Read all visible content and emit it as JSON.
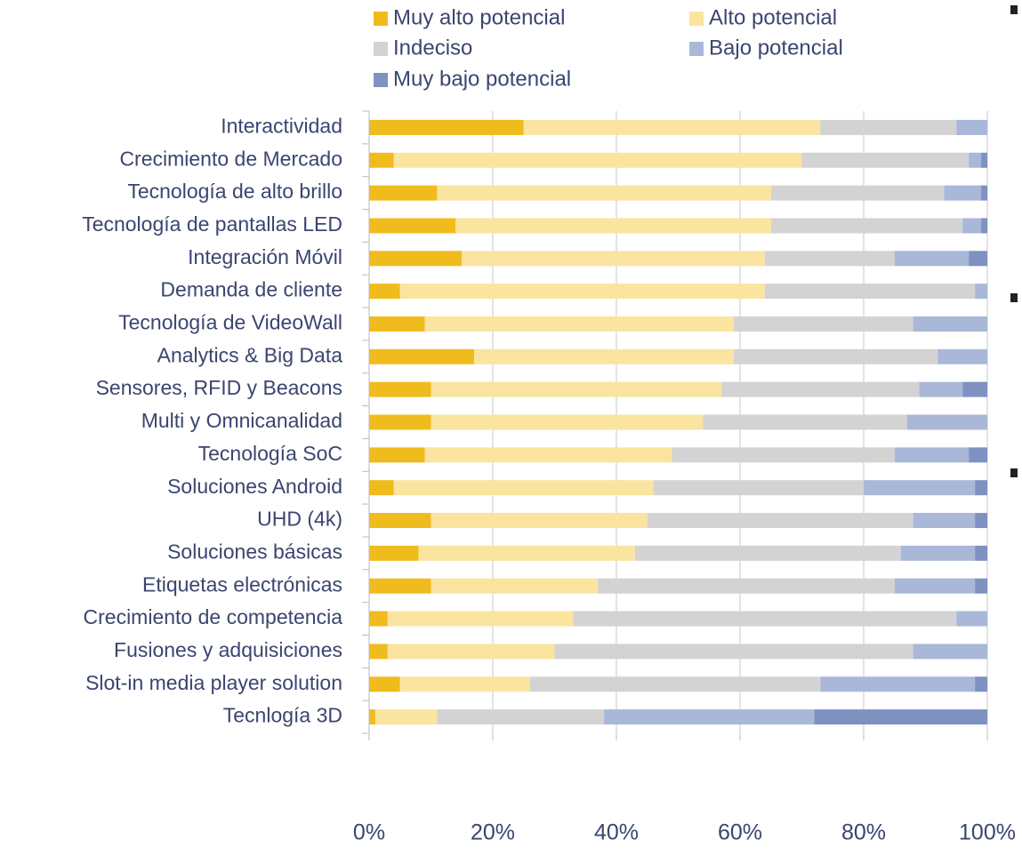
{
  "chart_data": {
    "type": "stacked-barh",
    "categories": [
      "Interactividad",
      "Crecimiento de Mercado",
      "Tecnología de alto brillo",
      "Tecnología de pantallas LED",
      "Integración Móvil",
      "Demanda de cliente",
      "Tecnología de VideoWall",
      "Analytics & Big Data",
      "Sensores, RFID y Beacons",
      "Multi y Omnicanalidad",
      "Tecnología SoC",
      "Soluciones Android",
      "UHD (4k)",
      "Soluciones básicas",
      "Etiquetas electrónicas",
      "Crecimiento de competencia",
      "Fusiones y adquisiciones",
      "Slot-in media player solution",
      "Tecnlogía 3D"
    ],
    "series": [
      {
        "name": "Muy alto potencial",
        "color": "#f0bc1d",
        "values": [
          25,
          4,
          11,
          14,
          15,
          5,
          9,
          17,
          10,
          10,
          9,
          4,
          10,
          8,
          10,
          3,
          3,
          5,
          1
        ]
      },
      {
        "name": "Alto potencial",
        "color": "#fae4a0",
        "values": [
          48,
          66,
          54,
          51,
          49,
          59,
          50,
          42,
          47,
          44,
          40,
          42,
          35,
          35,
          27,
          30,
          27,
          21,
          10
        ]
      },
      {
        "name": "Indeciso",
        "color": "#d3d3d3",
        "values": [
          22,
          27,
          28,
          31,
          21,
          34,
          29,
          33,
          32,
          33,
          36,
          34,
          43,
          43,
          48,
          62,
          58,
          47,
          27
        ]
      },
      {
        "name": "Bajo potencial",
        "color": "#a9b7d9",
        "values": [
          5,
          2,
          6,
          3,
          12,
          2,
          12,
          8,
          7,
          13,
          12,
          18,
          10,
          12,
          13,
          5,
          12,
          25,
          34
        ]
      },
      {
        "name": "Muy bajo potencial",
        "color": "#7f91c1",
        "values": [
          0,
          1,
          1,
          1,
          3,
          0,
          0,
          0,
          4,
          0,
          3,
          2,
          2,
          2,
          2,
          0,
          0,
          2,
          28
        ]
      }
    ],
    "xlim": [
      0,
      100
    ],
    "xticks": [
      {
        "value": 0,
        "label": "0%"
      },
      {
        "value": 20,
        "label": "20%"
      },
      {
        "value": 40,
        "label": "40%"
      },
      {
        "value": 60,
        "label": "60%"
      },
      {
        "value": 80,
        "label": "80%"
      },
      {
        "value": 100,
        "label": "100%"
      }
    ],
    "grid": true
  }
}
